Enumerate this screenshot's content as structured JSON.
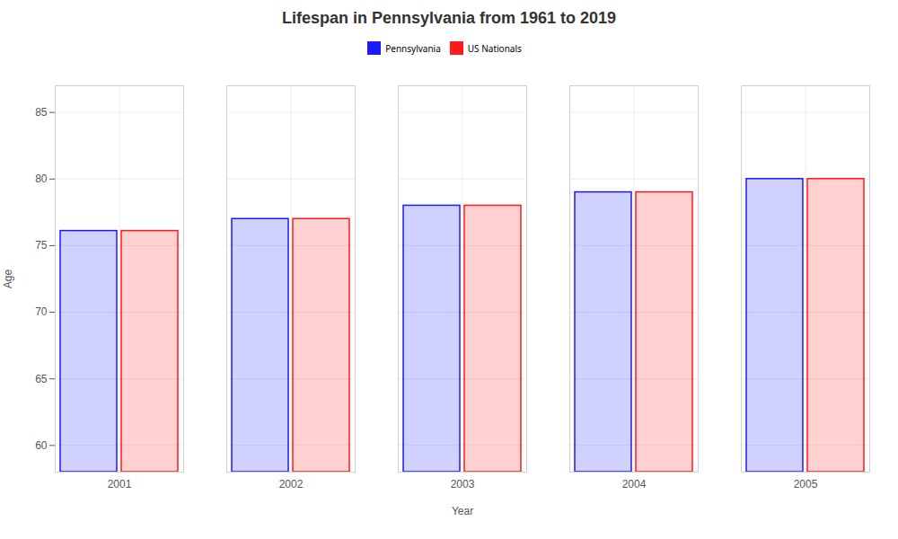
{
  "chart_data": {
    "type": "bar",
    "title": "Lifespan in Pennsylvania from 1961 to 2019",
    "xlabel": "Year",
    "ylabel": "Age",
    "categories": [
      "2001",
      "2002",
      "2003",
      "2004",
      "2005"
    ],
    "series": [
      {
        "name": "Pennsylvania",
        "color": "#1a1aff",
        "values": [
          76.1,
          77.0,
          78.0,
          79.0,
          80.0
        ]
      },
      {
        "name": "US Nationals",
        "color": "#ff1a1a",
        "values": [
          76.1,
          77.0,
          78.0,
          79.0,
          80.0
        ]
      }
    ],
    "ylim": [
      58,
      87
    ],
    "yticks": [
      60,
      65,
      70,
      75,
      80,
      85
    ],
    "grid": true,
    "legend": "top"
  }
}
